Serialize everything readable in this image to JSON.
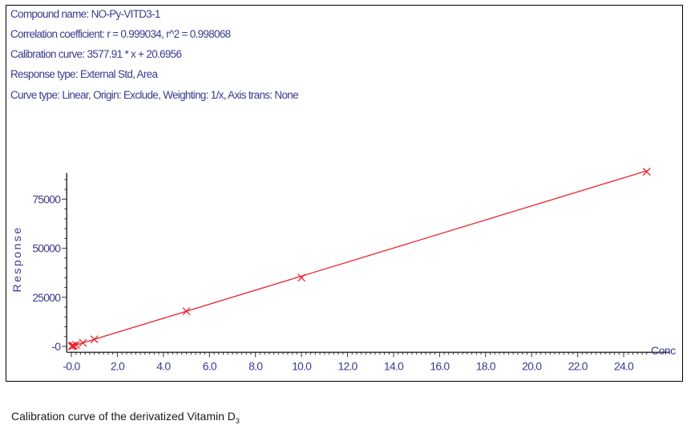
{
  "header": {
    "compound": "Compound name: NO-Py-VITD3-1",
    "correlation": "Correlation coefficient: r = 0.999034, r^2 = 0.998068",
    "calibration": "Calibration curve: 3577.91 * x + 20.6956",
    "response_type": "Response type: External Std, Area",
    "curve_type": "Curve type: Linear, Origin: Exclude, Weighting: 1/x, Axis trans: None"
  },
  "caption": {
    "text": "Calibration curve of the derivatized Vitamin D",
    "subscript": "3"
  },
  "colors": {
    "axis_text": "#3b3b8f",
    "series": "#e8232a",
    "axis": "#333333"
  },
  "chart_data": {
    "type": "scatter",
    "xlabel": "Conc",
    "ylabel": "Response",
    "xlim": [
      -0.2,
      26.0
    ],
    "ylim": [
      -3000,
      90000
    ],
    "x_ticks": [
      0.0,
      2.0,
      4.0,
      6.0,
      8.0,
      10.0,
      12.0,
      14.0,
      16.0,
      18.0,
      20.0,
      22.0,
      24.0
    ],
    "x_tick_labels": [
      "-0.0",
      "2.0",
      "4.0",
      "6.0",
      "8.0",
      "10.0",
      "12.0",
      "14.0",
      "16.0",
      "18.0",
      "20.0",
      "22.0",
      "24.0"
    ],
    "y_ticks": [
      0,
      25000,
      50000,
      75000
    ],
    "y_tick_labels": [
      "-0",
      "25000",
      "50000",
      "75000"
    ],
    "fit": {
      "slope": 3577.91,
      "intercept": 20.6956
    },
    "series": [
      {
        "x": [
          0.02,
          0.05,
          0.1,
          0.2,
          0.5,
          1.0,
          5.0,
          10.0,
          25.0
        ],
        "y": [
          90,
          200,
          380,
          730,
          1800,
          3600,
          17900,
          35000,
          89000
        ]
      }
    ],
    "grid": false,
    "legend": "none"
  }
}
